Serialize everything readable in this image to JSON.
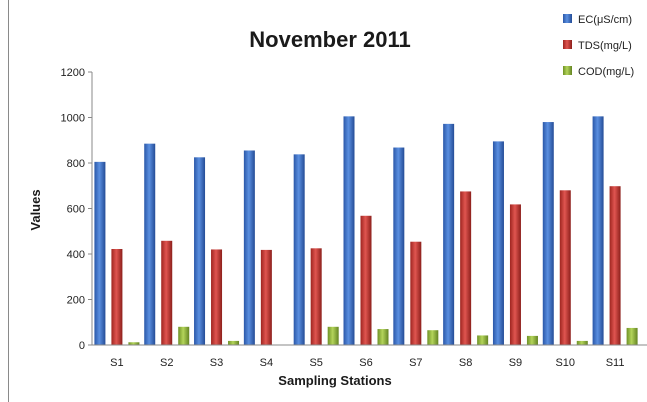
{
  "chart_data": {
    "type": "bar",
    "title": "November 2011",
    "xlabel": "Sampling Stations",
    "ylabel": "Values",
    "ylim": [
      0,
      1200
    ],
    "yticks": [
      0,
      200,
      400,
      600,
      800,
      1000,
      1200
    ],
    "grid": false,
    "legend": "top-right",
    "categories": [
      "S1",
      "S2",
      "S3",
      "S4",
      "S5",
      "S6",
      "S7",
      "S8",
      "S9",
      "S10",
      "S11"
    ],
    "series": [
      {
        "name": "EC(μS/cm)",
        "color": "#3a6fc4",
        "values": [
          805,
          885,
          825,
          855,
          838,
          1005,
          868,
          972,
          895,
          980,
          1005
        ]
      },
      {
        "name": "TDS(mg/L)",
        "color": "#c0312b",
        "values": [
          422,
          458,
          420,
          418,
          425,
          568,
          454,
          675,
          618,
          680,
          698
        ]
      },
      {
        "name": "COD(mg/L)",
        "color": "#8fb33a",
        "values": [
          12,
          80,
          18,
          0,
          80,
          70,
          65,
          42,
          40,
          18,
          75
        ]
      }
    ]
  }
}
